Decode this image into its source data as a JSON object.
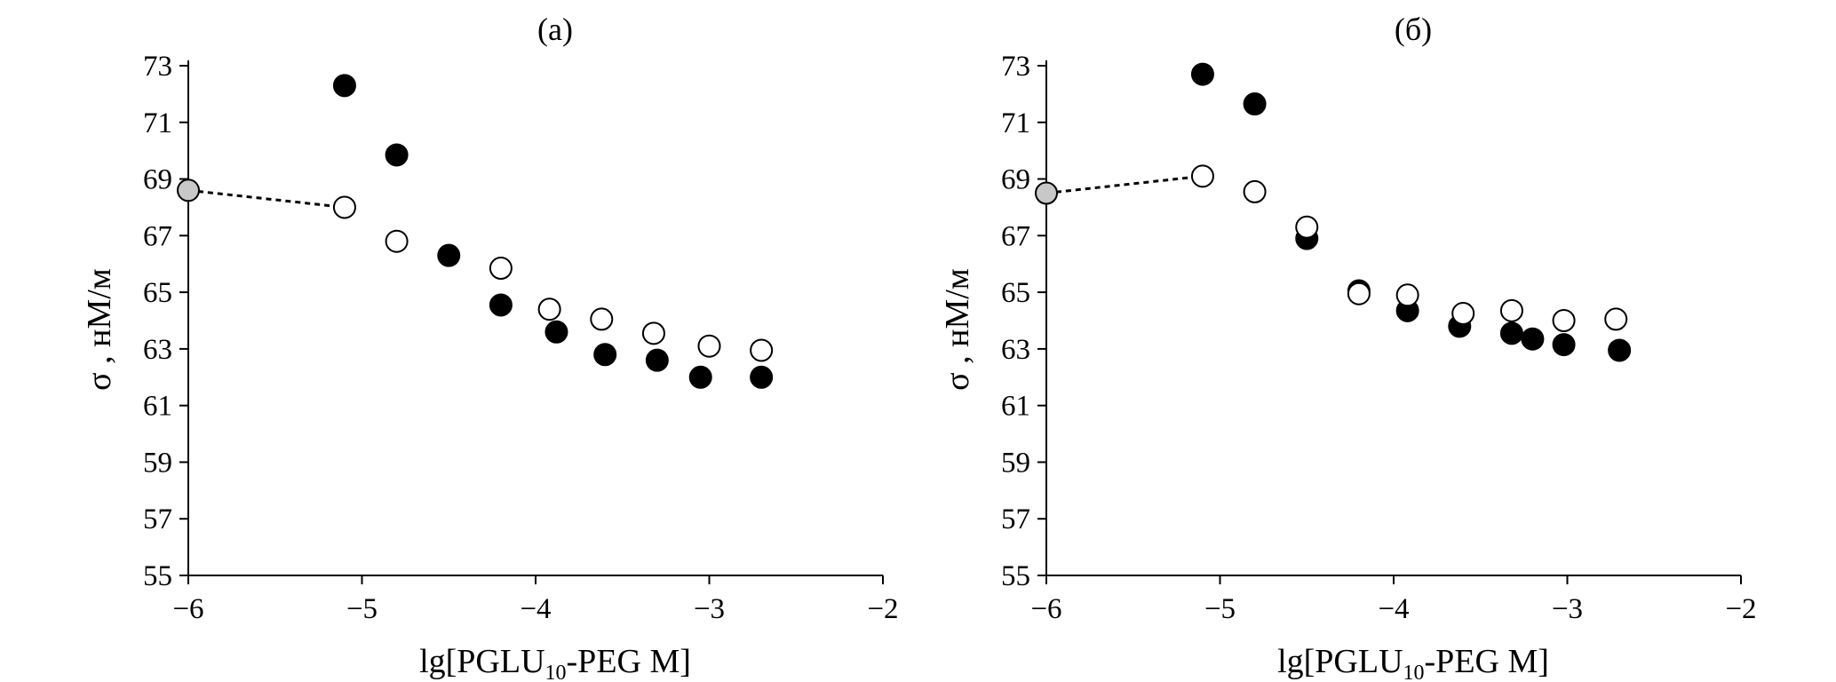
{
  "chart_data": [
    {
      "type": "scatter",
      "title": "(a)",
      "xlabel_main": "lg[PGLU",
      "xlabel_sub": "10",
      "xlabel_rest": "-PEG M]",
      "ylabel": "σ , нМ/м",
      "xlim": [
        -6,
        -2
      ],
      "ylim": [
        55,
        73
      ],
      "xticks": [
        -6,
        -5,
        -4,
        -3,
        -2
      ],
      "xtick_labels": [
        "−6",
        "−5",
        "−4",
        "−3",
        "−2"
      ],
      "yticks": [
        55,
        57,
        59,
        61,
        63,
        65,
        67,
        69,
        71,
        73
      ],
      "ytick_labels": [
        "55",
        "57",
        "59",
        "61",
        "63",
        "65",
        "67",
        "69",
        "71",
        "73"
      ],
      "series": [
        {
          "marker": "filled",
          "color": "#000000",
          "points": [
            [
              -5.1,
              72.3
            ],
            [
              -4.8,
              69.85
            ],
            [
              -4.5,
              66.3
            ],
            [
              -4.2,
              64.55
            ],
            [
              -3.88,
              63.6
            ],
            [
              -3.6,
              62.8
            ],
            [
              -3.3,
              62.6
            ],
            [
              -3.05,
              62.0
            ],
            [
              -2.7,
              62.0
            ]
          ]
        },
        {
          "marker": "open",
          "color": "#ffffff",
          "points": [
            [
              -5.1,
              68.0
            ],
            [
              -4.8,
              66.8
            ],
            [
              -4.2,
              65.85
            ],
            [
              -3.92,
              64.4
            ],
            [
              -3.62,
              64.05
            ],
            [
              -3.32,
              63.55
            ],
            [
              -3.0,
              63.1
            ],
            [
              -2.7,
              62.95
            ]
          ]
        },
        {
          "marker": "gray",
          "color": "#c8c8c8",
          "points": [
            [
              -6.0,
              68.6
            ]
          ]
        }
      ],
      "dashed_line": [
        [
          -6.0,
          68.6
        ],
        [
          -5.1,
          68.0
        ]
      ]
    },
    {
      "type": "scatter",
      "title": "(б)",
      "xlabel_main": "lg[PGLU",
      "xlabel_sub": "10",
      "xlabel_rest": "-PEG M]",
      "ylabel": "σ , нМ/м",
      "xlim": [
        -6,
        -2
      ],
      "ylim": [
        55,
        73
      ],
      "xticks": [
        -6,
        -5,
        -4,
        -3,
        -2
      ],
      "xtick_labels": [
        "−6",
        "−5",
        "−4",
        "−3",
        "−2"
      ],
      "yticks": [
        55,
        57,
        59,
        61,
        63,
        65,
        67,
        69,
        71,
        73
      ],
      "ytick_labels": [
        "55",
        "57",
        "59",
        "61",
        "63",
        "65",
        "67",
        "69",
        "71",
        "73"
      ],
      "series": [
        {
          "marker": "filled",
          "color": "#000000",
          "points": [
            [
              -5.1,
              72.7
            ],
            [
              -4.8,
              71.65
            ],
            [
              -4.5,
              66.9
            ],
            [
              -4.2,
              65.05
            ],
            [
              -3.92,
              64.35
            ],
            [
              -3.62,
              63.8
            ],
            [
              -3.32,
              63.55
            ],
            [
              -3.2,
              63.35
            ],
            [
              -3.02,
              63.15
            ],
            [
              -2.7,
              62.95
            ]
          ]
        },
        {
          "marker": "open",
          "color": "#ffffff",
          "points": [
            [
              -5.1,
              69.1
            ],
            [
              -4.8,
              68.55
            ],
            [
              -4.5,
              67.3
            ],
            [
              -4.2,
              64.95
            ],
            [
              -3.92,
              64.9
            ],
            [
              -3.6,
              64.25
            ],
            [
              -3.32,
              64.35
            ],
            [
              -3.02,
              64.0
            ],
            [
              -2.72,
              64.05
            ]
          ]
        },
        {
          "marker": "gray",
          "color": "#c8c8c8",
          "points": [
            [
              -6.0,
              68.5
            ]
          ]
        }
      ],
      "dashed_line": [
        [
          -6.0,
          68.5
        ],
        [
          -5.1,
          69.1
        ]
      ]
    }
  ]
}
